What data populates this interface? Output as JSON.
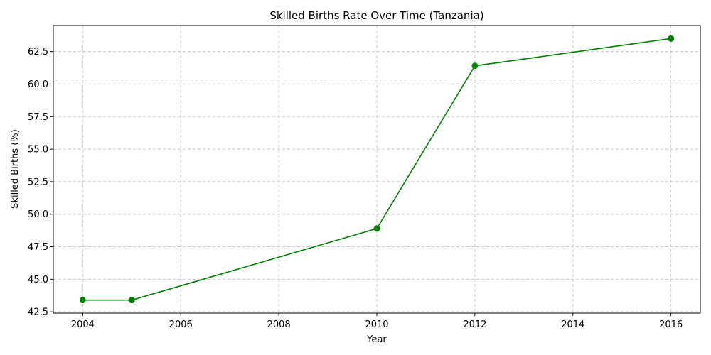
{
  "chart_data": {
    "type": "line",
    "title": "Skilled Births Rate Over Time (Tanzania)",
    "xlabel": "Year",
    "ylabel": "Skilled Births (%)",
    "x": [
      2004,
      2005,
      2010,
      2012,
      2016
    ],
    "series": [
      {
        "values": [
          43.4,
          43.4,
          48.9,
          61.4,
          63.5
        ],
        "color": "#008000",
        "marker": "circle"
      }
    ],
    "xlim": [
      2003.4,
      2016.6
    ],
    "ylim": [
      42.4,
      64.5
    ],
    "xticks": [
      2004,
      2006,
      2008,
      2010,
      2012,
      2014,
      2016
    ],
    "yticks": [
      42.5,
      45.0,
      47.5,
      50.0,
      52.5,
      55.0,
      57.5,
      60.0,
      62.5
    ],
    "grid": true,
    "grid_color": "#c8c8c8",
    "legend": "none"
  }
}
